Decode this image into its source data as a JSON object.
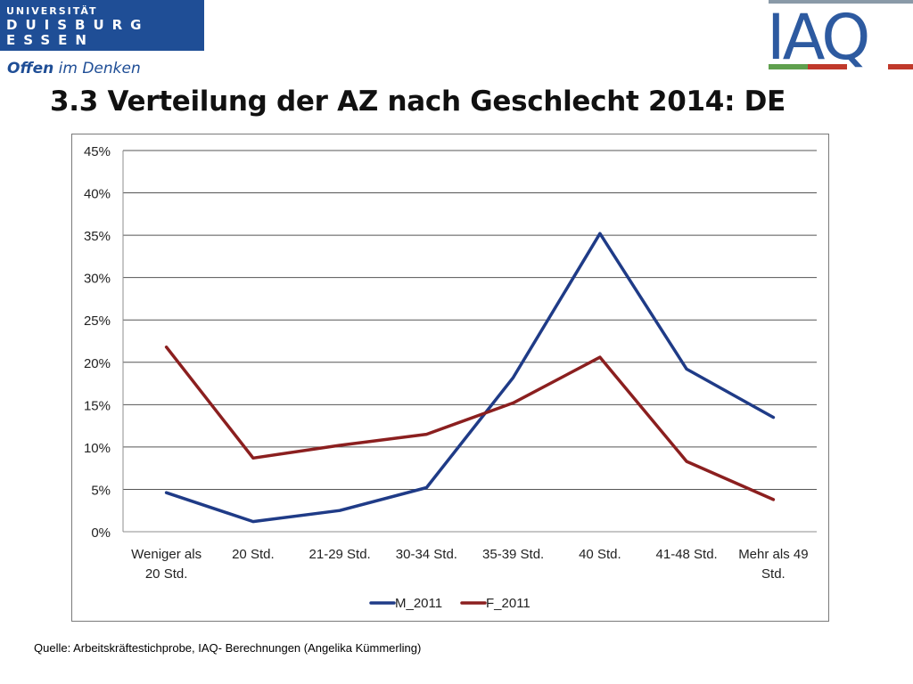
{
  "header": {
    "university_logo": {
      "line1": "UNIVERSITÄT",
      "line2": "DUISBURG",
      "line3": "ESSEN"
    },
    "slogan": {
      "bold": "Offen",
      "rest": " im Denken"
    },
    "iaq_logo": {
      "text": "IAQ"
    },
    "title": "3.3 Verteilung der AZ nach Geschlecht 2014: DE"
  },
  "source": "Quelle: Arbeitskräftestichprobe, IAQ- Berechnungen (Angelika Kümmerling)",
  "colors": {
    "uni_blue": "#1f4e96",
    "series_m": "#1f3b87",
    "series_f": "#8b1f1f",
    "iaq_blue": "#2d5aa0",
    "iaq_green": "#5fa04e",
    "iaq_red": "#c0392b",
    "iaq_gray": "#8a9aa8"
  },
  "chart_data": {
    "type": "line",
    "categories": [
      [
        "Weniger als",
        "20 Std."
      ],
      [
        "20 Std."
      ],
      [
        "21-29 Std."
      ],
      [
        "30-34 Std."
      ],
      [
        "35-39 Std."
      ],
      [
        "40 Std."
      ],
      [
        "41-48 Std."
      ],
      [
        "Mehr als 49",
        "Std."
      ]
    ],
    "series": [
      {
        "name": "M_2011",
        "color": "#1f3b87",
        "values": [
          0.046,
          0.012,
          0.025,
          0.052,
          0.182,
          0.352,
          0.192,
          0.135
        ]
      },
      {
        "name": "F_2011",
        "color": "#8b1f1f",
        "values": [
          0.218,
          0.087,
          0.102,
          0.115,
          0.152,
          0.206,
          0.083,
          0.038
        ]
      }
    ],
    "yticks": [
      "0%",
      "5%",
      "10%",
      "15%",
      "20%",
      "25%",
      "30%",
      "35%",
      "40%",
      "45%"
    ],
    "ylim": [
      0,
      0.45
    ],
    "grid": true,
    "legend": "bottom"
  }
}
